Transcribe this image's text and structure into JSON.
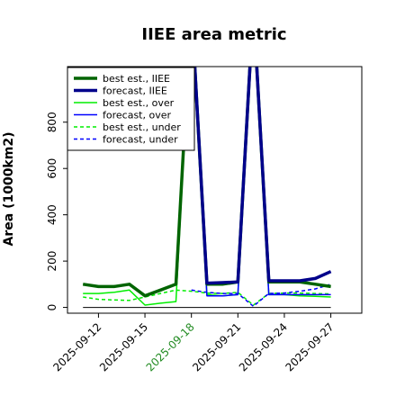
{
  "chart_data": {
    "type": "line",
    "title": "IIEE area metric",
    "xlabel": "",
    "ylabel": "Area (1000km2)",
    "ylim": [
      -25,
      1040
    ],
    "xlim": [
      "2025-09-10",
      "2025-09-29"
    ],
    "yticks": [
      0,
      200,
      400,
      600,
      800
    ],
    "xticks": [
      "2025-09-12",
      "2025-09-15",
      "2025-09-18",
      "2025-09-21",
      "2025-09-24",
      "2025-09-27"
    ],
    "highlight_tick": "2025-09-18",
    "highlight_color": "#228b22",
    "baseline": 0,
    "legend_position": "top-left",
    "dates": [
      "2025-09-11",
      "2025-09-12",
      "2025-09-13",
      "2025-09-14",
      "2025-09-15",
      "2025-09-16",
      "2025-09-17",
      "2025-09-18",
      "2025-09-19",
      "2025-09-20",
      "2025-09-21",
      "2025-09-22",
      "2025-09-23",
      "2025-09-24",
      "2025-09-25",
      "2025-09-26",
      "2025-09-27"
    ],
    "series": [
      {
        "name": "best est., IIEE",
        "color": "#006400",
        "style": "solid",
        "width": 3.5,
        "values": [
          100,
          90,
          90,
          100,
          50,
          75,
          100,
          1300,
          100,
          100,
          110,
          1300,
          110,
          110,
          110,
          100,
          90
        ]
      },
      {
        "name": "forecast, IIEE",
        "color": "#00008b",
        "style": "solid",
        "width": 3.5,
        "values": [
          null,
          null,
          null,
          null,
          null,
          null,
          null,
          1300,
          105,
          107,
          110,
          1300,
          115,
          115,
          115,
          125,
          155
        ]
      },
      {
        "name": "best est., over",
        "color": "#00ee00",
        "style": "solid",
        "width": 1.5,
        "values": [
          60,
          60,
          65,
          75,
          10,
          18,
          25,
          1300,
          55,
          50,
          55,
          1300,
          55,
          55,
          50,
          48,
          45
        ]
      },
      {
        "name": "forecast, over",
        "color": "#0000ff",
        "style": "solid",
        "width": 1.5,
        "values": [
          null,
          null,
          null,
          null,
          null,
          null,
          null,
          1300,
          50,
          50,
          55,
          1300,
          55,
          55,
          55,
          55,
          55
        ]
      },
      {
        "name": "best est., under",
        "color": "#00ee00",
        "style": "dashed",
        "width": 1.5,
        "values": [
          45,
          35,
          32,
          30,
          45,
          60,
          75,
          70,
          62,
          60,
          65,
          10,
          60,
          62,
          62,
          60,
          58
        ]
      },
      {
        "name": "forecast, under",
        "color": "#0000ff",
        "style": "dashed",
        "width": 1.5,
        "values": [
          null,
          null,
          null,
          null,
          null,
          null,
          null,
          75,
          65,
          60,
          60,
          5,
          60,
          62,
          70,
          80,
          100
        ]
      }
    ]
  }
}
